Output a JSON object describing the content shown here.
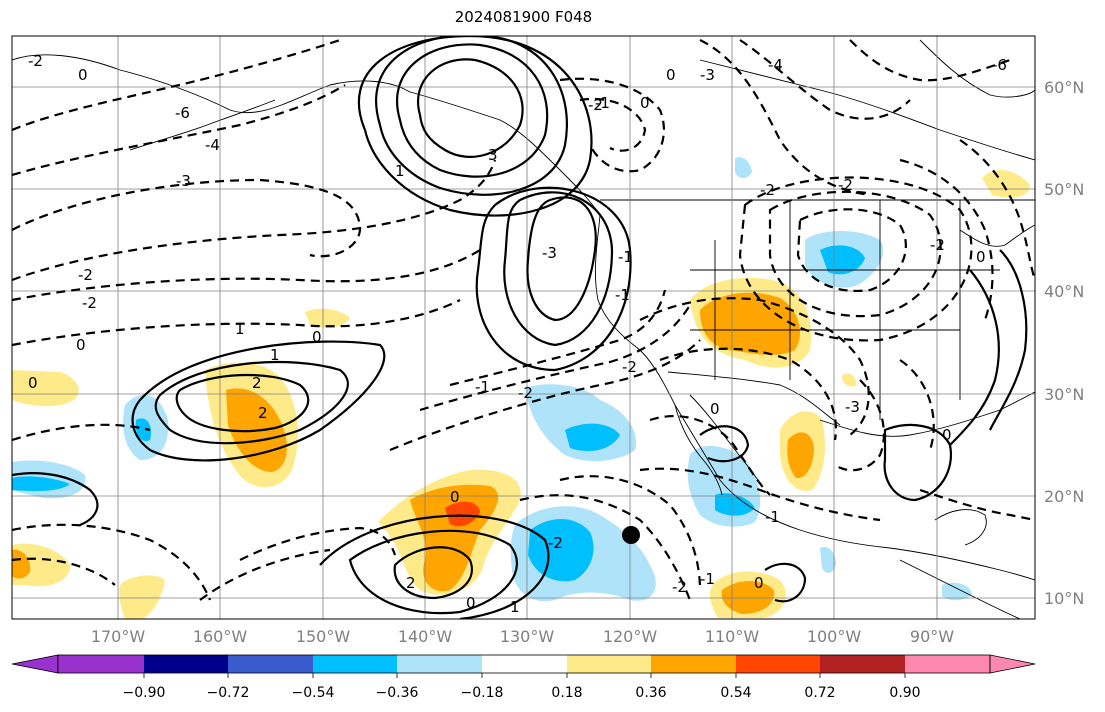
{
  "title": "2024081900 F048",
  "map": {
    "lon_labels": [
      "170°W",
      "160°W",
      "150°W",
      "140°W",
      "130°W",
      "120°W",
      "110°W",
      "100°W",
      "90°W"
    ],
    "lat_labels": [
      "60°N",
      "50°N",
      "40°N",
      "30°N",
      "20°N",
      "10°N"
    ],
    "contour_labels": [
      "0",
      "-2",
      "-2",
      "0",
      "-3",
      "-4",
      "-6",
      "1",
      "2",
      "2",
      "0",
      "1",
      "-1",
      "-2",
      "-2",
      "-1",
      "-1",
      "-2",
      "0",
      "0",
      "-2",
      "0",
      "-2",
      "-3",
      "3",
      "-1",
      "-2",
      "-6",
      "-4",
      "-3",
      "-2",
      "0",
      "1",
      "-1",
      "2",
      "-2",
      "0",
      "-3",
      "0",
      "0",
      "-2",
      "-1",
      "0",
      "1",
      "0"
    ],
    "marker": "storm-center-dot"
  },
  "colorbar": {
    "labels": [
      "−0.90",
      "−0.72",
      "−0.54",
      "−0.36",
      "−0.18",
      "0.18",
      "0.36",
      "0.54",
      "0.72",
      "0.90"
    ],
    "colors": [
      "#9932cc",
      "#00008b",
      "#3a5bcc",
      "#00bfff",
      "#aee3fa",
      "#ffffff",
      "#ffea8a",
      "#ffa500",
      "#ff4500",
      "#b22222",
      "#ff88b0"
    ]
  }
}
